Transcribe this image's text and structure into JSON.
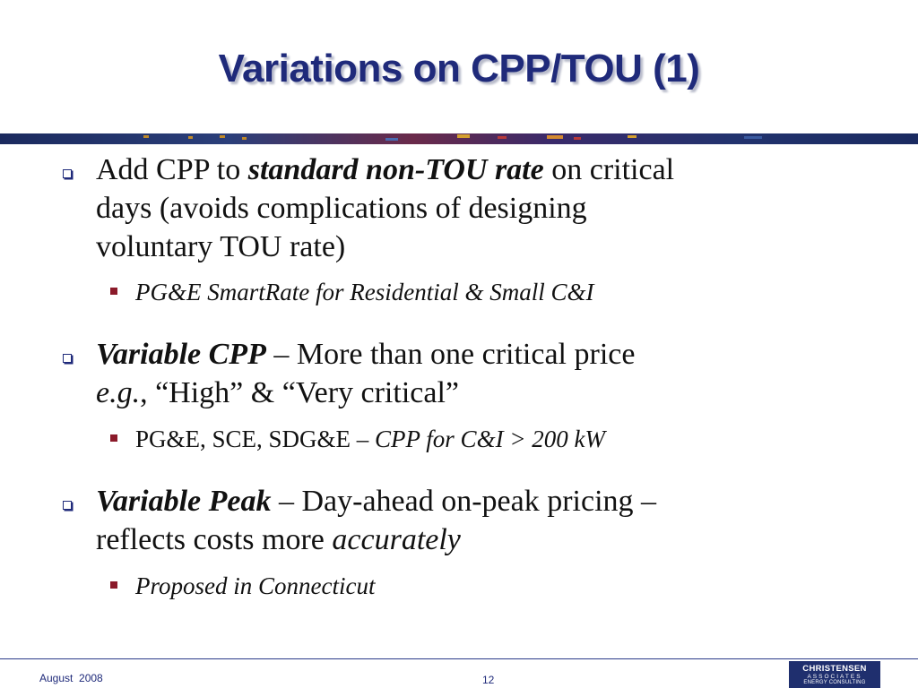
{
  "slide": {
    "title": "Variations on CPP/TOU (1)"
  },
  "bullets": [
    {
      "level1": {
        "t1": "Add CPP to ",
        "t2_italic_bold": "standard non-TOU rate",
        "t3": " on critical",
        "t4": "days (avoids complications of designing",
        "t5": "voluntary TOU rate)"
      },
      "level2": {
        "text_italic": "PG&E SmartRate for Residential & Small C&I"
      }
    },
    {
      "level1": {
        "t1_italic_bold": "Variable CPP",
        "t2": " – More than one critical price",
        "t3_italic": "e.g.",
        "t4": ", “High” & “Very critical”"
      },
      "level2": {
        "t1": "PG&E, SCE, SDG&E – ",
        "t2_italic": "CPP for C&I > 200 kW"
      }
    },
    {
      "level1": {
        "t1_italic_bold": "Variable Peak",
        "t2": " – Day-ahead on-peak pricing –",
        "t3": "reflects costs more ",
        "t4_italic": "accurately"
      },
      "level2": {
        "text_italic": "Proposed in Connecticut"
      }
    }
  ],
  "footer": {
    "date": "August  2008",
    "page": "12"
  },
  "logo": {
    "line1": "CHRISTENSEN",
    "line2": "ASSOCIATES",
    "line3": "ENERGY CONSULTING"
  },
  "colors": {
    "title": "#1f2a7a",
    "bullet_hollow": "#1f2a7a",
    "bullet_square": "#8b1a2a",
    "banner": "#1a2a66",
    "logo_bg": "#1f2f6e"
  }
}
